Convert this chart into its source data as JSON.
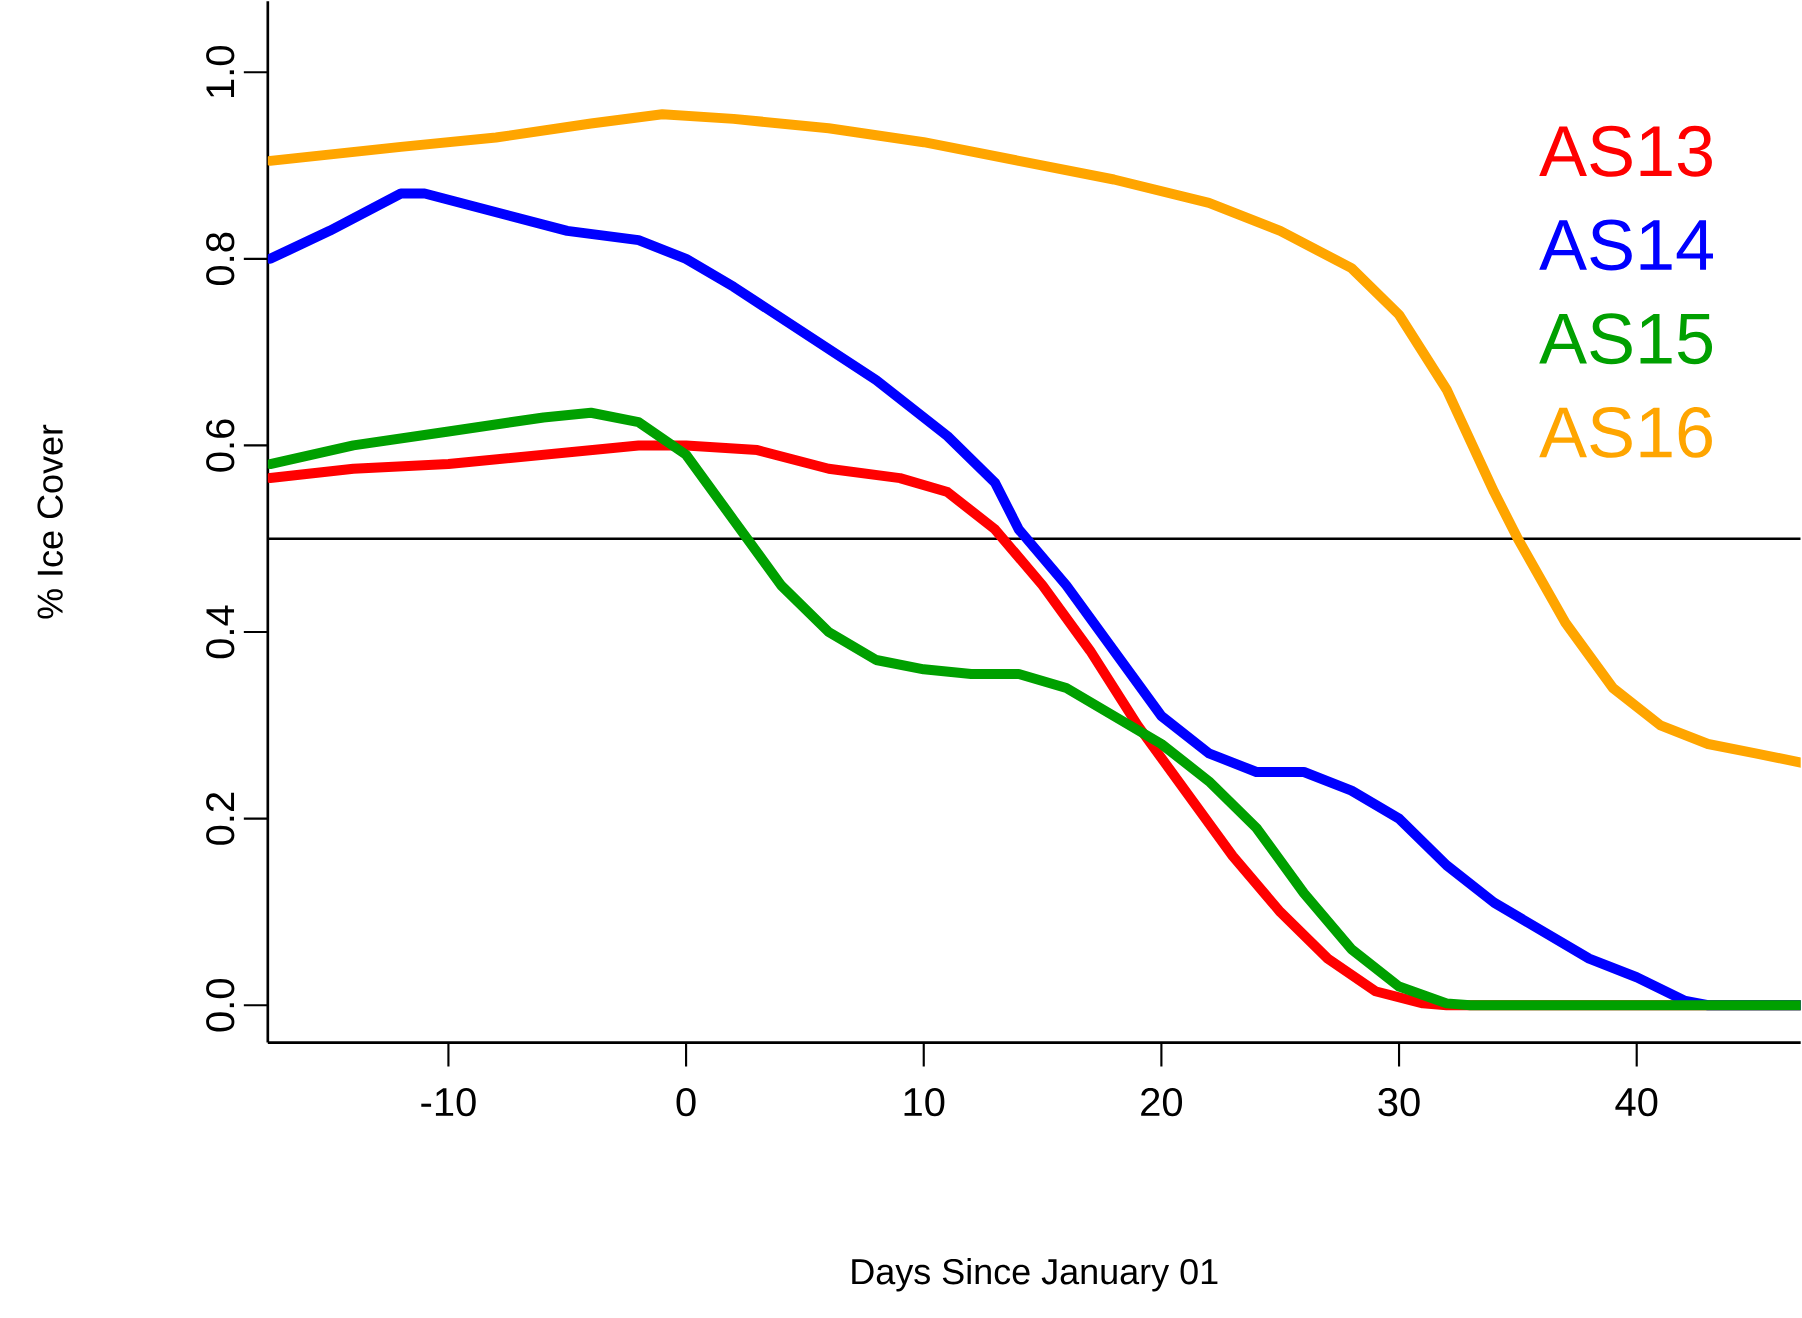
{
  "chart_data": {
    "type": "line",
    "xlabel": "Days Since January 01",
    "ylabel": "% Ice Cover",
    "xlim": [
      -17.6,
      46.9
    ],
    "ylim": [
      -0.04,
      1.076
    ],
    "xticks": [
      -10,
      0,
      10,
      20,
      30,
      40
    ],
    "yticks": [
      {
        "value": 0,
        "label": "0.0"
      },
      {
        "value": 0.2,
        "label": "0.2"
      },
      {
        "value": 0.4,
        "label": "0.4"
      },
      {
        "value": 0.6,
        "label": "0.6"
      },
      {
        "value": 0.8,
        "label": "0.8"
      },
      {
        "value": 1,
        "label": "1.0"
      }
    ],
    "legend": "top right",
    "grid": false,
    "marker": "none",
    "line_style": "solid",
    "ref_lines": [
      {
        "axis": "y",
        "value": 0.5,
        "color": "#000000"
      }
    ],
    "series": [
      {
        "name": "AS13",
        "color": "#ff0000",
        "x": [
          -17.5,
          -14,
          -10,
          -6,
          -2,
          0,
          3,
          6,
          9,
          11,
          13,
          15,
          17,
          19,
          21,
          23,
          25,
          27,
          29,
          31,
          32,
          46.9
        ],
        "values": [
          0.565,
          0.575,
          0.58,
          0.59,
          0.6,
          0.6,
          0.595,
          0.575,
          0.565,
          0.55,
          0.51,
          0.45,
          0.38,
          0.3,
          0.23,
          0.16,
          0.1,
          0.05,
          0.015,
          0.002,
          0,
          0
        ]
      },
      {
        "name": "AS14",
        "color": "#0000ff",
        "x": [
          -17.5,
          -15,
          -12,
          -11,
          -8,
          -5,
          -2,
          0,
          2,
          5,
          8,
          11,
          13,
          14,
          16,
          18,
          20,
          22,
          24,
          26,
          28,
          30,
          32,
          34,
          36,
          38,
          40,
          42,
          43,
          46.9
        ],
        "values": [
          0.8,
          0.83,
          0.87,
          0.87,
          0.85,
          0.83,
          0.82,
          0.8,
          0.77,
          0.72,
          0.67,
          0.61,
          0.56,
          0.51,
          0.45,
          0.38,
          0.31,
          0.27,
          0.25,
          0.25,
          0.23,
          0.2,
          0.15,
          0.11,
          0.08,
          0.05,
          0.03,
          0.005,
          0,
          0
        ]
      },
      {
        "name": "AS15",
        "color": "#00a000",
        "x": [
          -17.5,
          -14,
          -10,
          -6,
          -4,
          -2,
          0,
          2,
          4,
          6,
          8,
          10,
          12,
          14,
          16,
          18,
          20,
          22,
          24,
          26,
          28,
          30,
          32,
          33,
          46.9
        ],
        "values": [
          0.58,
          0.6,
          0.615,
          0.63,
          0.635,
          0.625,
          0.59,
          0.52,
          0.45,
          0.4,
          0.37,
          0.36,
          0.355,
          0.355,
          0.34,
          0.31,
          0.28,
          0.24,
          0.19,
          0.12,
          0.06,
          0.02,
          0.002,
          0,
          0
        ]
      },
      {
        "name": "AS16",
        "color": "#ffa500",
        "x": [
          -17.5,
          -12,
          -8,
          -4,
          -1,
          2,
          6,
          10,
          14,
          18,
          22,
          25,
          28,
          30,
          32,
          34,
          35,
          37,
          39,
          41,
          43,
          45,
          46.9
        ],
        "values": [
          0.905,
          0.92,
          0.93,
          0.945,
          0.955,
          0.95,
          0.94,
          0.925,
          0.905,
          0.885,
          0.86,
          0.83,
          0.79,
          0.74,
          0.66,
          0.55,
          0.5,
          0.41,
          0.34,
          0.3,
          0.28,
          0.27,
          0.26
        ]
      }
    ]
  }
}
